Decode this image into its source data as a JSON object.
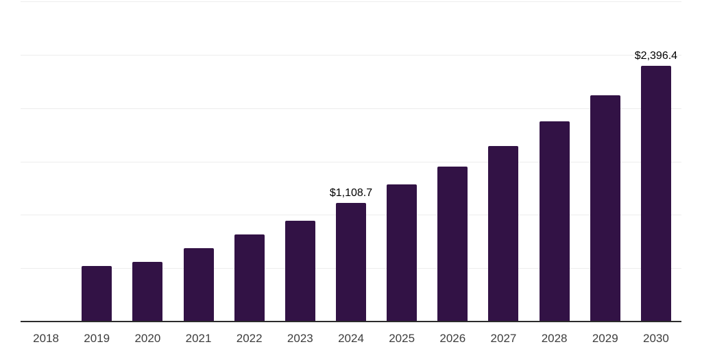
{
  "chart_data": {
    "type": "bar",
    "title": "",
    "xlabel": "",
    "ylabel": "",
    "categories": [
      "2018",
      "2019",
      "2020",
      "2021",
      "2022",
      "2023",
      "2024",
      "2025",
      "2026",
      "2027",
      "2028",
      "2029",
      "2030"
    ],
    "values": [
      null,
      518,
      560,
      685,
      817,
      946,
      1108.7,
      1288,
      1455,
      1645,
      1875,
      2119,
      2396.4
    ],
    "data_labels": [
      {
        "category": "2024",
        "text": "$1,108.7"
      },
      {
        "category": "2030",
        "text": "$2,396.4"
      }
    ],
    "ylim": [
      0,
      3000
    ],
    "grid_step": 500,
    "grid": true,
    "legend_position": "none",
    "colors": {
      "bar": "#321245",
      "axis_line": "#2b2b2b",
      "gridline": "#ededed",
      "tick_label": "#3d3d3d",
      "data_label": "#000000",
      "background": "#ffffff"
    }
  }
}
